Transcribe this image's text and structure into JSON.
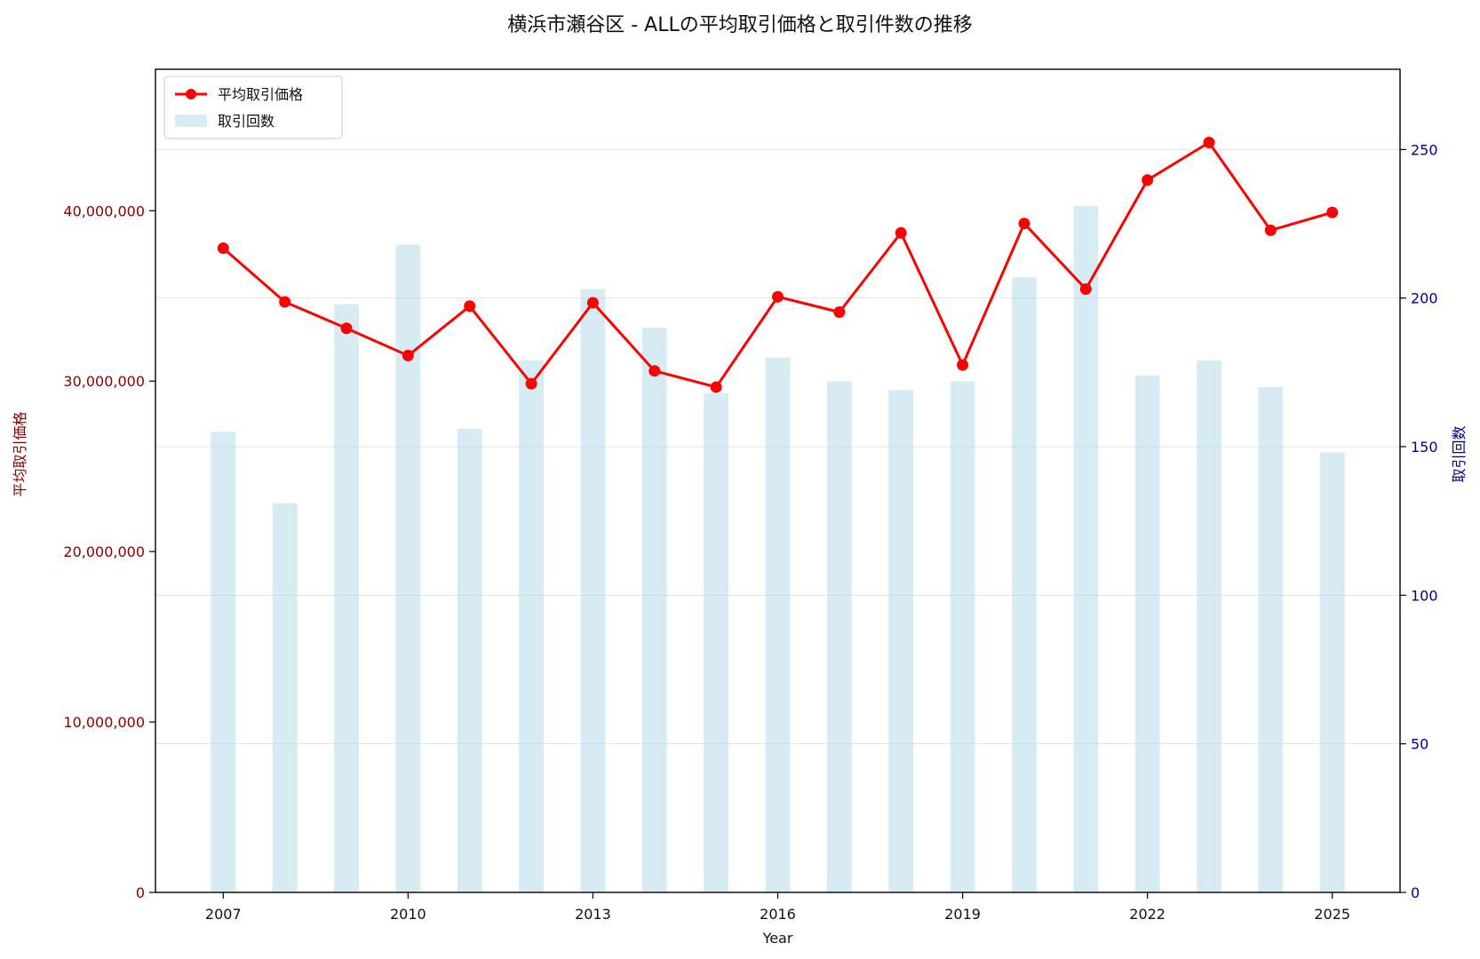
{
  "chart_data": {
    "type": "bar+line",
    "title": "横浜市瀬谷区 - ALLの平均取引価格と取引件数の推移",
    "xlabel": "Year",
    "ylabel_left": "平均取引価格",
    "ylabel_right": "取引回数",
    "x": [
      2007,
      2008,
      2009,
      2010,
      2011,
      2012,
      2013,
      2014,
      2015,
      2016,
      2017,
      2018,
      2019,
      2020,
      2021,
      2022,
      2023,
      2024,
      2025
    ],
    "xlim": [
      2005.9,
      2026.1
    ],
    "x_ticks": [
      "2007",
      "2010",
      "2013",
      "2016",
      "2019",
      "2022",
      "2025"
    ],
    "left_axis": {
      "ylim": [
        0,
        48300000
      ],
      "ticks": [
        "0",
        "10,000,000",
        "20,000,000",
        "30,000,000",
        "40,000,000"
      ],
      "color": "#8b0000"
    },
    "right_axis": {
      "ylim": [
        0,
        277
      ],
      "ticks": [
        "0",
        "50",
        "100",
        "150",
        "200",
        "250"
      ],
      "color": "#00008b"
    },
    "series": [
      {
        "name": "平均取引価格",
        "kind": "line",
        "axis": "left",
        "color": "#ff0000",
        "values": [
          37800000,
          34650000,
          33100000,
          31500000,
          34400000,
          29850000,
          34600000,
          30600000,
          29650000,
          34950000,
          34050000,
          38700000,
          30950000,
          39250000,
          35400000,
          41800000,
          44000000,
          38850000,
          39900000
        ]
      },
      {
        "name": "取引回数",
        "kind": "bar",
        "axis": "right",
        "color": "#add8e6",
        "values": [
          155,
          131,
          198,
          218,
          156,
          179,
          203,
          190,
          168,
          180,
          172,
          169,
          172,
          207,
          231,
          174,
          179,
          170,
          148
        ]
      }
    ],
    "legend_position": "top-left",
    "grid": "horizontal (right axis)"
  }
}
